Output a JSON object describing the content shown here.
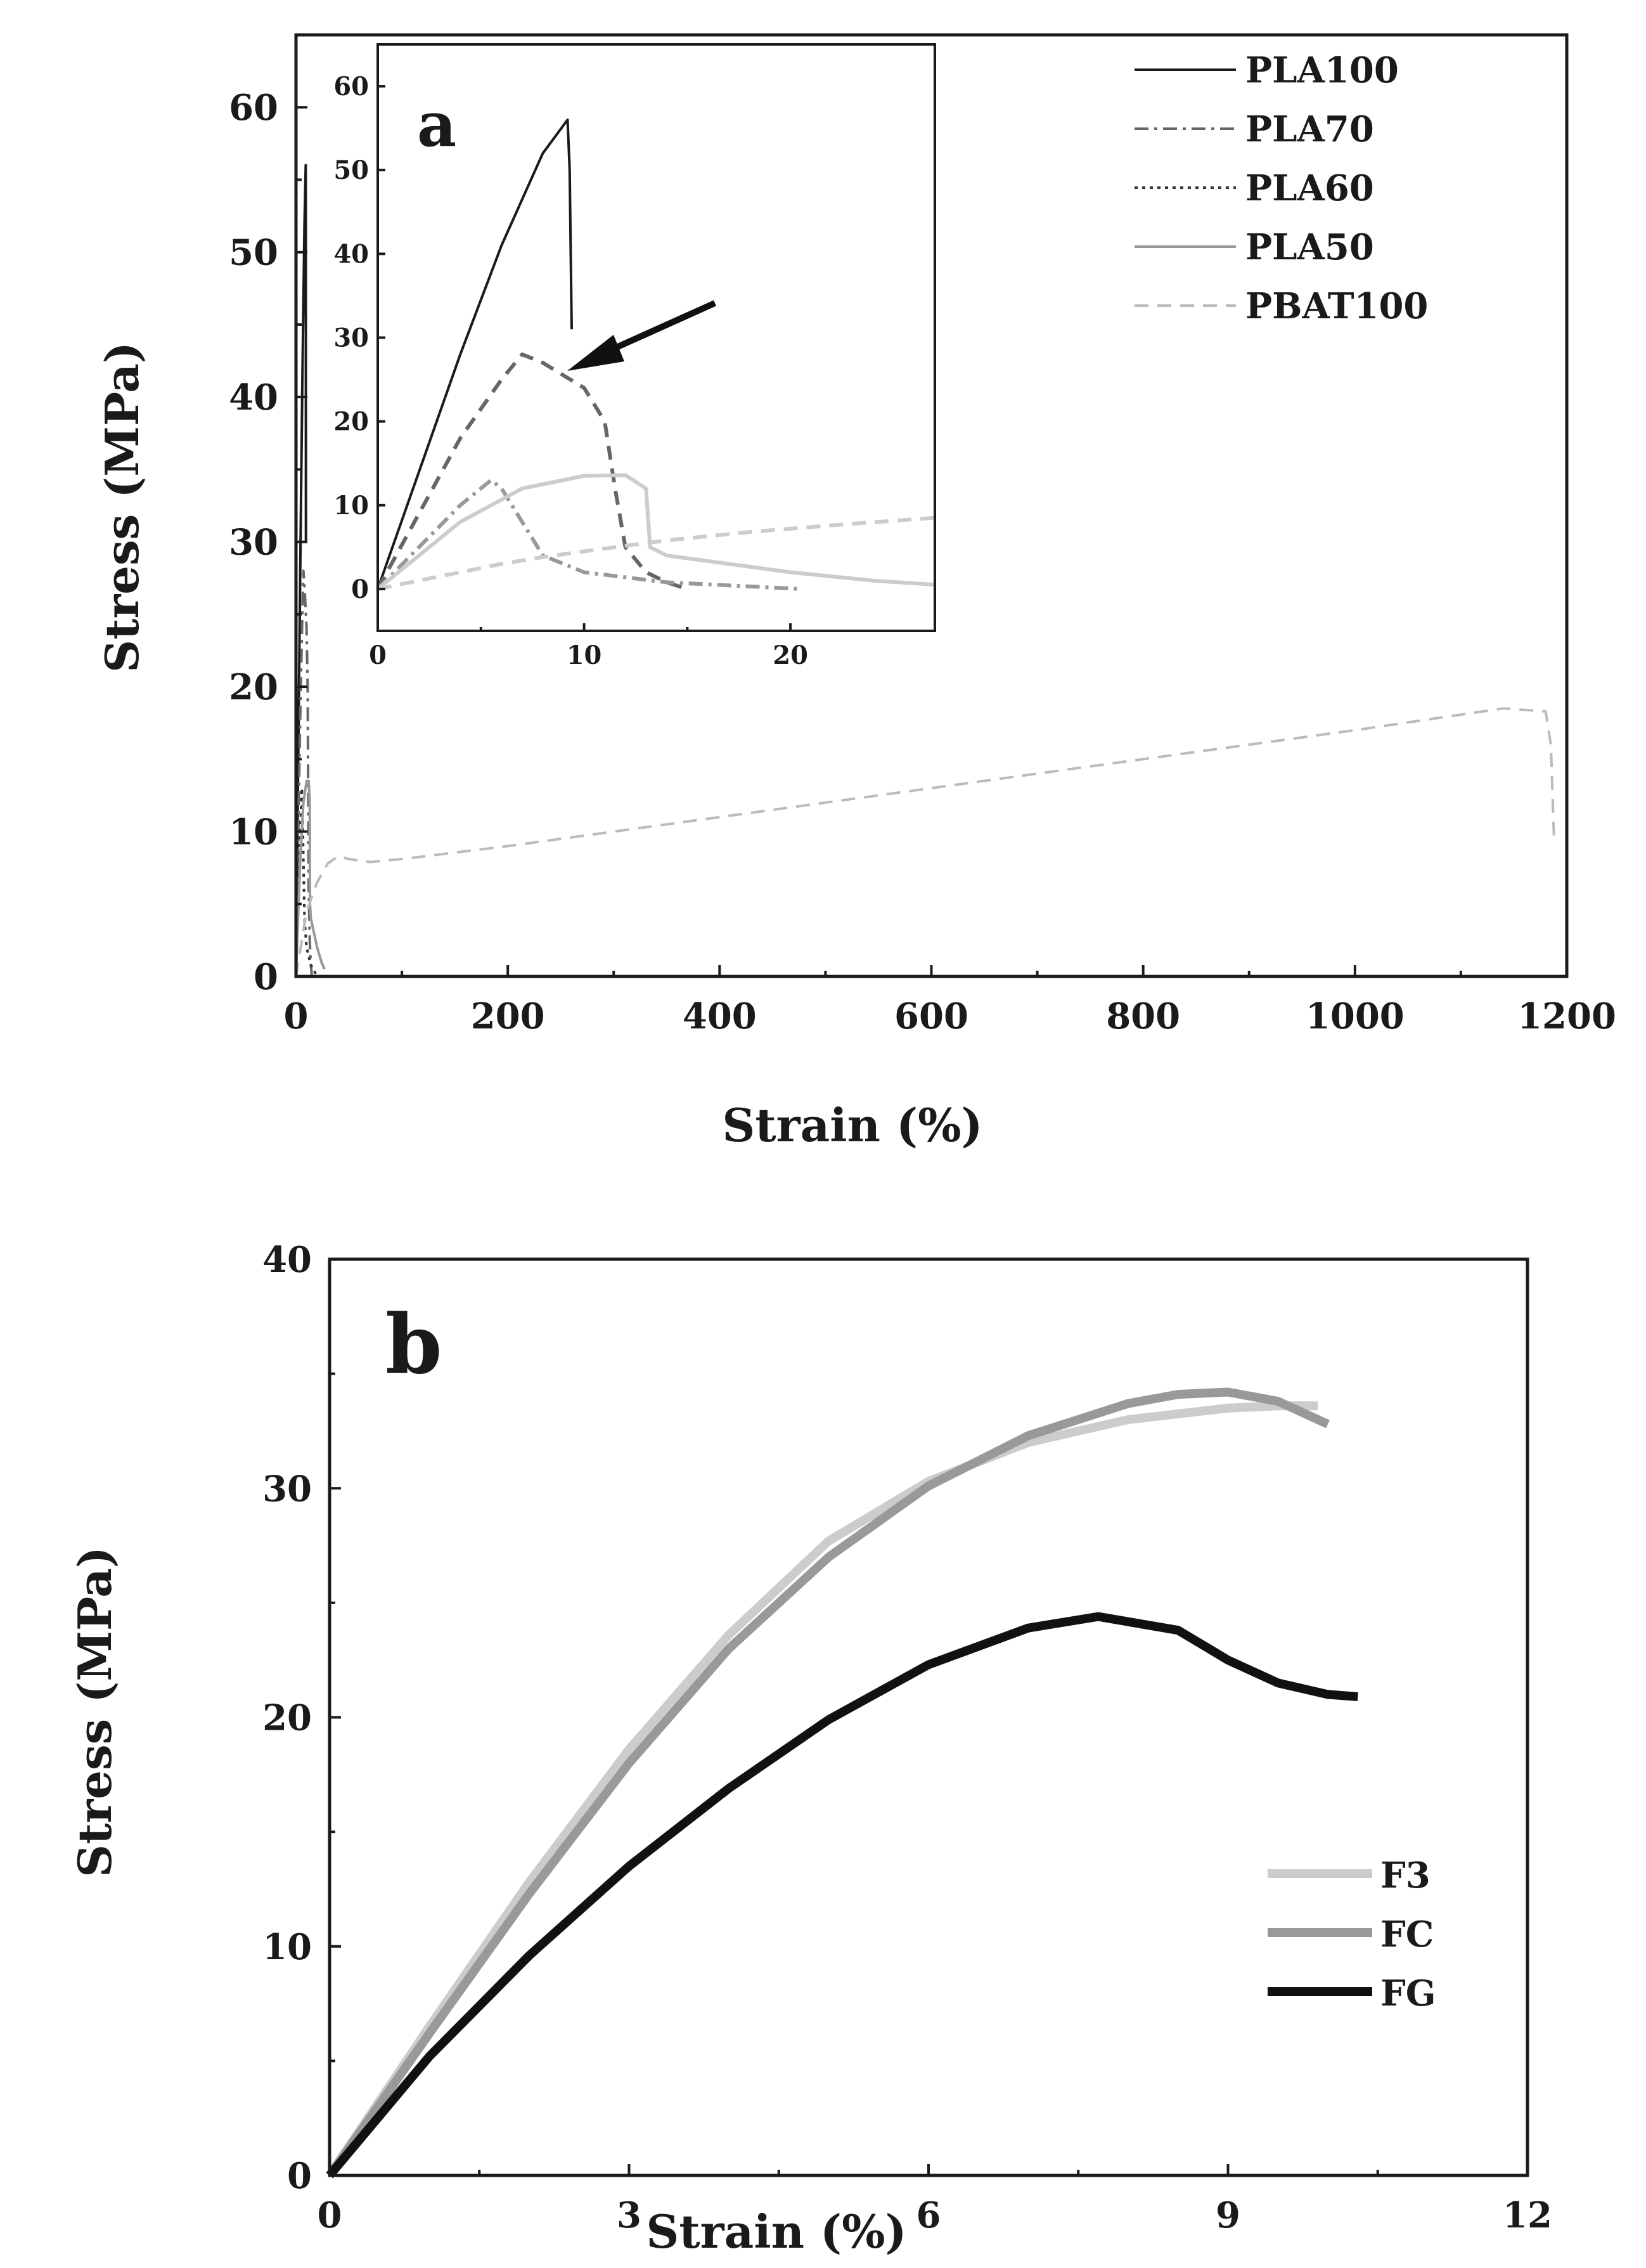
{
  "chart_data": [
    {
      "panel": "a",
      "type": "line",
      "panel_label": "a",
      "xlabel": "Strain (%)",
      "ylabel": "Stress (MPa)",
      "xlim": [
        0,
        1200
      ],
      "ylim": [
        0,
        65
      ],
      "xticks": [
        0,
        200,
        400,
        600,
        800,
        1000,
        1200
      ],
      "yticks": [
        0,
        10,
        20,
        30,
        40,
        50,
        60
      ],
      "grid": false,
      "legend_position": "top-right",
      "series": [
        {
          "name": "PLA100",
          "color": "#1a1a1a",
          "dash": "solid",
          "x": [
            0,
            2,
            4,
            6,
            8,
            9.2,
            9.3,
            9.4
          ],
          "y": [
            0,
            14,
            28,
            41,
            52,
            56,
            50,
            30
          ]
        },
        {
          "name": "PLA70",
          "color": "#666666",
          "dash": "dashdot",
          "x": [
            0,
            2,
            4,
            6,
            7,
            8,
            10,
            11,
            12,
            13,
            14,
            15
          ],
          "y": [
            0,
            9,
            18,
            25,
            28,
            27,
            24,
            20,
            6,
            2.5,
            0.8,
            0
          ]
        },
        {
          "name": "PLA60",
          "color": "#333333",
          "dash": "dotted",
          "x": [
            0,
            2,
            4,
            5.5,
            6,
            7,
            8,
            10,
            14,
            20
          ],
          "y": [
            0,
            5,
            10,
            13,
            12,
            8,
            4,
            2,
            0.8,
            0
          ]
        },
        {
          "name": "PLA50",
          "color": "#999999",
          "dash": "solid",
          "x": [
            0,
            2,
            4,
            7,
            10,
            12,
            13,
            13.2,
            14,
            20,
            24,
            27
          ],
          "y": [
            0,
            4,
            8,
            12,
            13.5,
            13.5,
            12,
            5,
            4,
            2,
            1,
            0.5
          ]
        },
        {
          "name": "PBAT100",
          "color": "#bbbbbb",
          "dash": "dashed",
          "x": [
            0,
            10,
            20,
            30,
            40,
            50,
            70,
            100,
            200,
            400,
            600,
            800,
            1000,
            1140,
            1180,
            1185,
            1188
          ],
          "y": [
            0,
            4.5,
            6.5,
            7.8,
            8.3,
            8.1,
            7.9,
            8.1,
            9,
            11,
            13,
            15,
            17,
            18.5,
            18.3,
            16,
            9.5
          ]
        }
      ],
      "inset": {
        "xlim": [
          0,
          27
        ],
        "ylim": [
          -5,
          65
        ],
        "xticks": [
          0,
          10,
          20
        ],
        "yticks": [
          0,
          10,
          20,
          30,
          40,
          50,
          60
        ],
        "series": [
          {
            "name": "PLA100",
            "color": "#1a1a1a",
            "dash": "solid",
            "width": 4,
            "x": [
              0,
              2,
              4,
              6,
              8,
              9.2,
              9.3,
              9.4
            ],
            "y": [
              0,
              14,
              28,
              41,
              52,
              56,
              50,
              31
            ]
          },
          {
            "name": "PLA70",
            "color": "#666666",
            "dash": "dashed",
            "width": 6,
            "x": [
              0,
              2,
              4,
              6,
              7,
              8,
              10,
              11,
              11.5,
              12,
              13,
              14,
              15
            ],
            "y": [
              0,
              9,
              18,
              25,
              28,
              27,
              24,
              20,
              12,
              5,
              2,
              0.8,
              0
            ]
          },
          {
            "name": "PLA60",
            "color": "#999999",
            "dash": "dashdot",
            "width": 6,
            "x": [
              0,
              2,
              4,
              5.5,
              6,
              7,
              8,
              10,
              14,
              20.5
            ],
            "y": [
              0,
              5,
              10,
              13,
              12,
              8,
              4,
              2,
              0.8,
              0
            ]
          },
          {
            "name": "PLA50",
            "color": "#cccccc",
            "dash": "solid",
            "width": 6,
            "x": [
              0,
              2,
              4,
              7,
              10,
              12,
              13,
              13.2,
              14,
              17,
              20,
              24,
              27
            ],
            "y": [
              0,
              4,
              8,
              12,
              13.5,
              13.6,
              12,
              5,
              4,
              3,
              2,
              1,
              0.5
            ]
          },
          {
            "name": "PBAT100",
            "color": "#cccccc",
            "dash": "dashed",
            "width": 6,
            "x": [
              0,
              2,
              4,
              6,
              8,
              10,
              14,
              18,
              22,
              27
            ],
            "y": [
              0,
              1,
              2,
              3,
              3.8,
              4.5,
              5.8,
              6.8,
              7.6,
              8.5
            ]
          }
        ]
      }
    },
    {
      "panel": "b",
      "type": "line",
      "panel_label": "b",
      "xlabel": "Strain (%)",
      "ylabel": "Stress (MPa)",
      "xlim": [
        0,
        12
      ],
      "ylim": [
        0,
        40
      ],
      "xticks": [
        0,
        3,
        6,
        9,
        12
      ],
      "yticks": [
        0,
        10,
        20,
        30,
        40
      ],
      "grid": false,
      "legend_position": "lower-right",
      "series": [
        {
          "name": "F3",
          "color": "#cccccc",
          "dash": "solid",
          "x": [
            0,
            1,
            2,
            3,
            4,
            5,
            6,
            7,
            8,
            9,
            9.5,
            9.9
          ],
          "y": [
            0,
            6.5,
            12.8,
            18.6,
            23.6,
            27.7,
            30.3,
            32.0,
            33.0,
            33.5,
            33.6,
            33.6
          ]
        },
        {
          "name": "FC",
          "color": "#999999",
          "dash": "solid",
          "x": [
            0,
            1,
            2,
            3,
            4,
            5,
            6,
            7,
            8,
            8.5,
            9,
            9.5,
            10
          ],
          "y": [
            0,
            6.2,
            12.3,
            18.0,
            23.0,
            27.0,
            30.1,
            32.3,
            33.7,
            34.1,
            34.2,
            33.8,
            32.8
          ]
        },
        {
          "name": "FG",
          "color": "#111111",
          "dash": "solid",
          "x": [
            0,
            1,
            2,
            3,
            4,
            5,
            6,
            7,
            7.7,
            8.5,
            9,
            9.5,
            10,
            10.3
          ],
          "y": [
            0,
            5.2,
            9.6,
            13.5,
            16.9,
            19.9,
            22.3,
            23.9,
            24.4,
            23.8,
            22.5,
            21.5,
            21.0,
            20.9
          ]
        }
      ]
    }
  ]
}
